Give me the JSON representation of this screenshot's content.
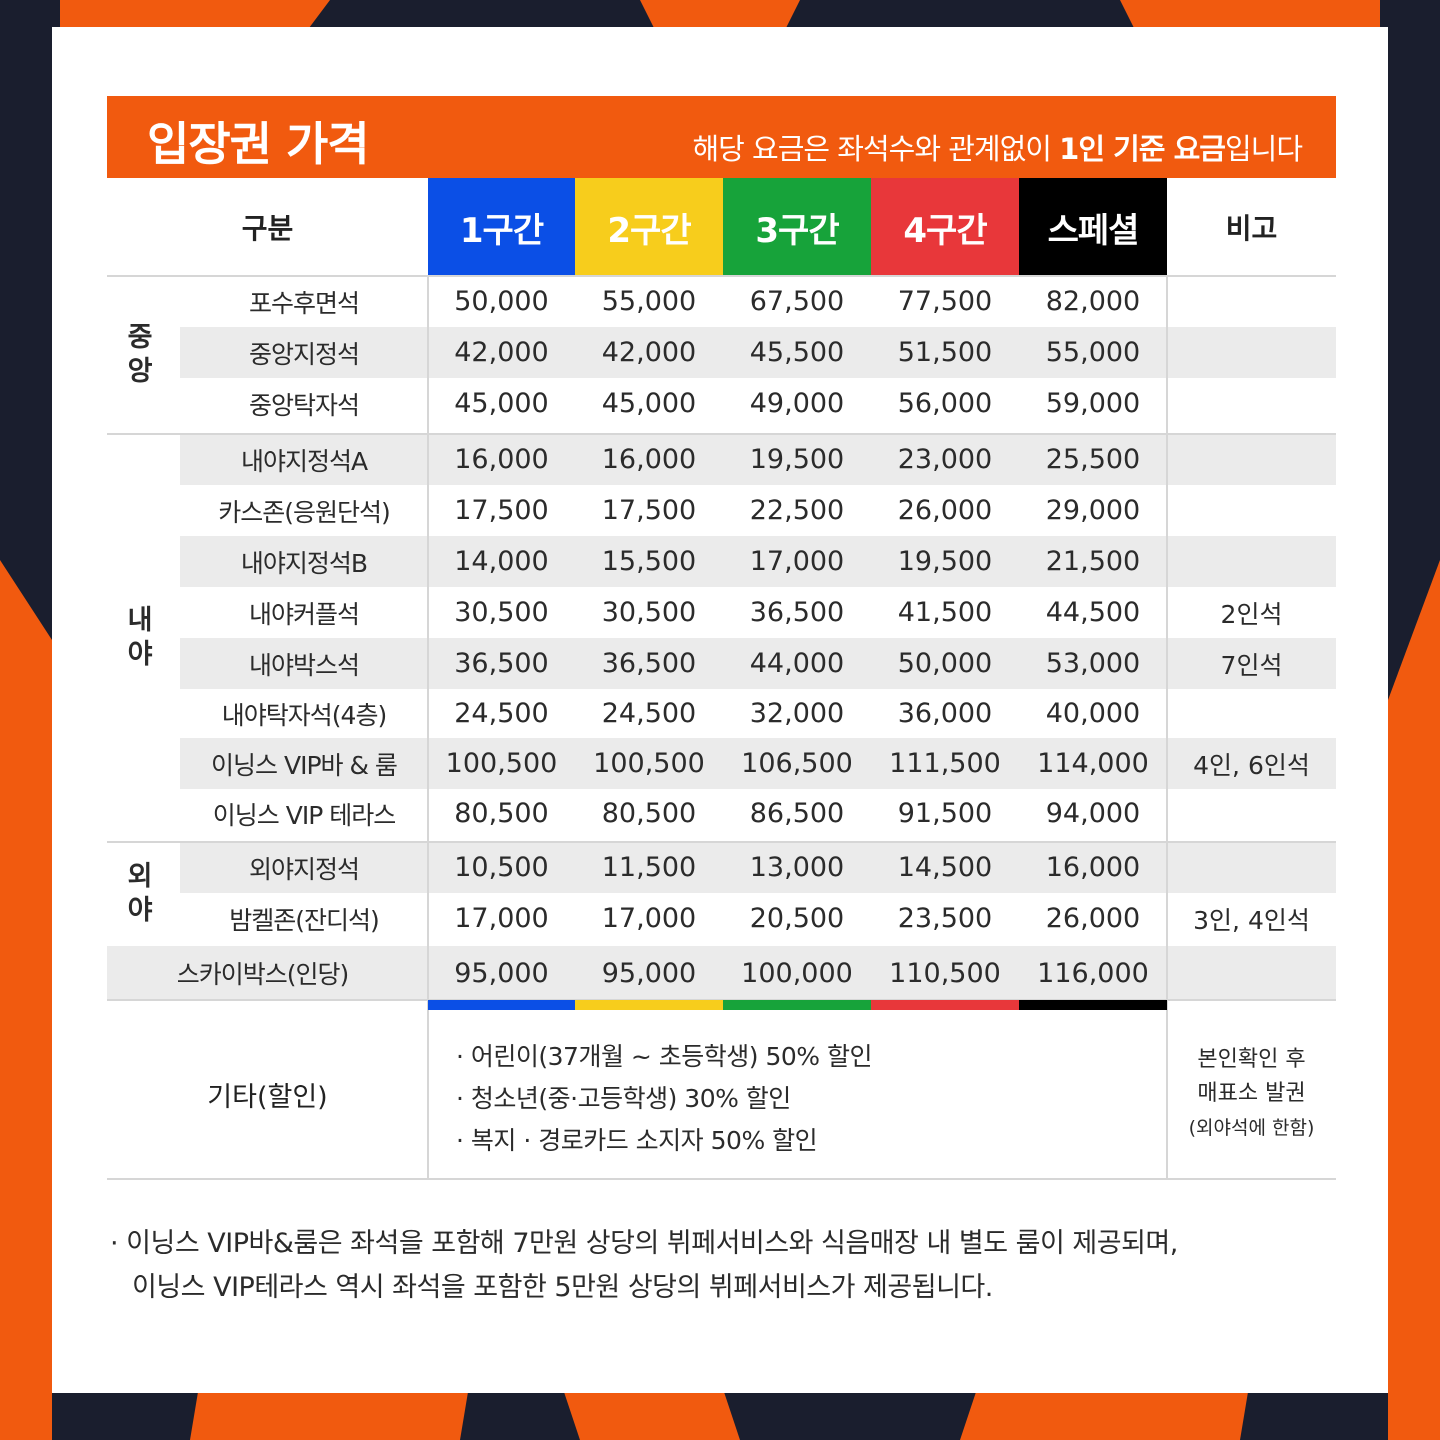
{
  "banner": {
    "title": "입장권 가격",
    "subtitle_pre": "해당 요금은 좌석수와 관계없이 ",
    "subtitle_bold": "1인 기준 요금",
    "subtitle_post": "입니다"
  },
  "header": {
    "category_label": "구분",
    "zones": [
      {
        "label": "1구간",
        "color": "#0b4fe6"
      },
      {
        "label": "2구간",
        "color": "#f7cd1c"
      },
      {
        "label": "3구간",
        "color": "#17a33a"
      },
      {
        "label": "4구간",
        "color": "#e8373a"
      },
      {
        "label": "스페셜",
        "color": "#000000"
      }
    ],
    "remarks_label": "비고"
  },
  "groups": [
    {
      "label": "중\n앙"
    },
    {
      "label": "내\n야"
    },
    {
      "label": "외\n야"
    }
  ],
  "rows": [
    {
      "seat": "포수후면석",
      "prices": [
        "50,000",
        "55,000",
        "67,500",
        "77,500",
        "82,000"
      ],
      "note": ""
    },
    {
      "seat": "중앙지정석",
      "prices": [
        "42,000",
        "42,000",
        "45,500",
        "51,500",
        "55,000"
      ],
      "note": ""
    },
    {
      "seat": "중앙탁자석",
      "prices": [
        "45,000",
        "45,000",
        "49,000",
        "56,000",
        "59,000"
      ],
      "note": ""
    },
    {
      "seat": "내야지정석A",
      "prices": [
        "16,000",
        "16,000",
        "19,500",
        "23,000",
        "25,500"
      ],
      "note": ""
    },
    {
      "seat": "카스존(응원단석)",
      "prices": [
        "17,500",
        "17,500",
        "22,500",
        "26,000",
        "29,000"
      ],
      "note": ""
    },
    {
      "seat": "내야지정석B",
      "prices": [
        "14,000",
        "15,500",
        "17,000",
        "19,500",
        "21,500"
      ],
      "note": ""
    },
    {
      "seat": "내야커플석",
      "prices": [
        "30,500",
        "30,500",
        "36,500",
        "41,500",
        "44,500"
      ],
      "note": "2인석"
    },
    {
      "seat": "내야박스석",
      "prices": [
        "36,500",
        "36,500",
        "44,000",
        "50,000",
        "53,000"
      ],
      "note": "7인석"
    },
    {
      "seat": "내야탁자석(4층)",
      "prices": [
        "24,500",
        "24,500",
        "32,000",
        "36,000",
        "40,000"
      ],
      "note": ""
    },
    {
      "seat": "이닝스 VIP바 & 룸",
      "prices": [
        "100,500",
        "100,500",
        "106,500",
        "111,500",
        "114,000"
      ],
      "note": "4인, 6인석"
    },
    {
      "seat": "이닝스 VIP 테라스",
      "prices": [
        "80,500",
        "80,500",
        "86,500",
        "91,500",
        "94,000"
      ],
      "note": ""
    },
    {
      "seat": "외야지정석",
      "prices": [
        "10,500",
        "11,500",
        "13,000",
        "14,500",
        "16,000"
      ],
      "note": ""
    },
    {
      "seat": "밤켈존(잔디석)",
      "prices": [
        "17,000",
        "17,000",
        "20,500",
        "23,500",
        "26,000"
      ],
      "note": "3인, 4인석"
    },
    {
      "seat": "스카이박스(인당)",
      "prices": [
        "95,000",
        "95,000",
        "100,000",
        "110,500",
        "116,000"
      ],
      "note": ""
    }
  ],
  "discount": {
    "label": "기타(할인)",
    "items": [
      "· 어린이(37개월 ~ 초등학생) 50% 할인",
      "· 청소년(중·고등학생) 30% 할인",
      "· 복지 · 경로카드 소지자 50% 할인"
    ],
    "note_line1": "본인확인 후",
    "note_line2": "매표소 발권",
    "note_line3": "(외야석에 한함)"
  },
  "footnote": {
    "line1": "· 이닝스 VIP바&룸은 좌석을 포함해 7만원 상당의 뷔페서비스와 식음매장 내 별도 룸이 제공되며,",
    "line2": "이닝스 VIP테라스 역시 좌석을 포함한 5만원 상당의 뷔페서비스가 제공됩니다."
  },
  "colors": {
    "accent": "#f15a0f",
    "background": "#1a1e2e"
  }
}
